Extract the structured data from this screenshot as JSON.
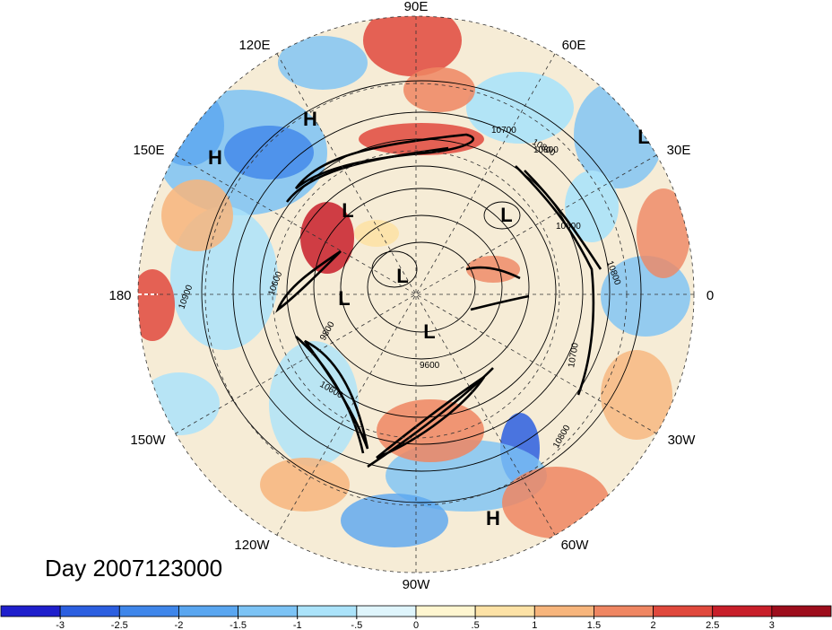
{
  "title": "Day 2007123000",
  "longitude_labels": [
    "90E",
    "60E",
    "30E",
    "0",
    "30W",
    "60W",
    "90W",
    "120W",
    "150W",
    "180",
    "150E",
    "120E"
  ],
  "pressure_centers": [
    {
      "label": "H",
      "name": "east-asia-high"
    },
    {
      "label": "H",
      "name": "west-pacific-high"
    },
    {
      "label": "L",
      "name": "north-europe-low"
    },
    {
      "label": "L",
      "name": "kamchatka-low"
    },
    {
      "label": "L",
      "name": "siberia-low"
    },
    {
      "label": "L",
      "name": "arctic-low"
    },
    {
      "label": "L",
      "name": "polar-low"
    },
    {
      "label": "L",
      "name": "canada-low"
    },
    {
      "label": "H",
      "name": "atlantic-high"
    }
  ],
  "contour_labels": [
    "10700",
    "10800",
    "10600",
    "10800",
    "10900",
    "10600",
    "9800",
    "9600",
    "10600",
    "10700",
    "10800",
    "10800"
  ],
  "colorbar": {
    "ticks": [
      "-3",
      "-2.5",
      "-2",
      "-1.5",
      "-1",
      "-.5",
      "0",
      ".5",
      "1",
      "1.5",
      "2",
      "2.5",
      "3"
    ],
    "colors": [
      "#1f1fcc",
      "#2c5fe0",
      "#3f86ea",
      "#5aa6f0",
      "#7cc3f5",
      "#abe3fa",
      "#dff5fc",
      "#fff6d0",
      "#fde2a6",
      "#f7b57c",
      "#ef8662",
      "#e0493d",
      "#c81f2a",
      "#9d0d1c"
    ]
  }
}
